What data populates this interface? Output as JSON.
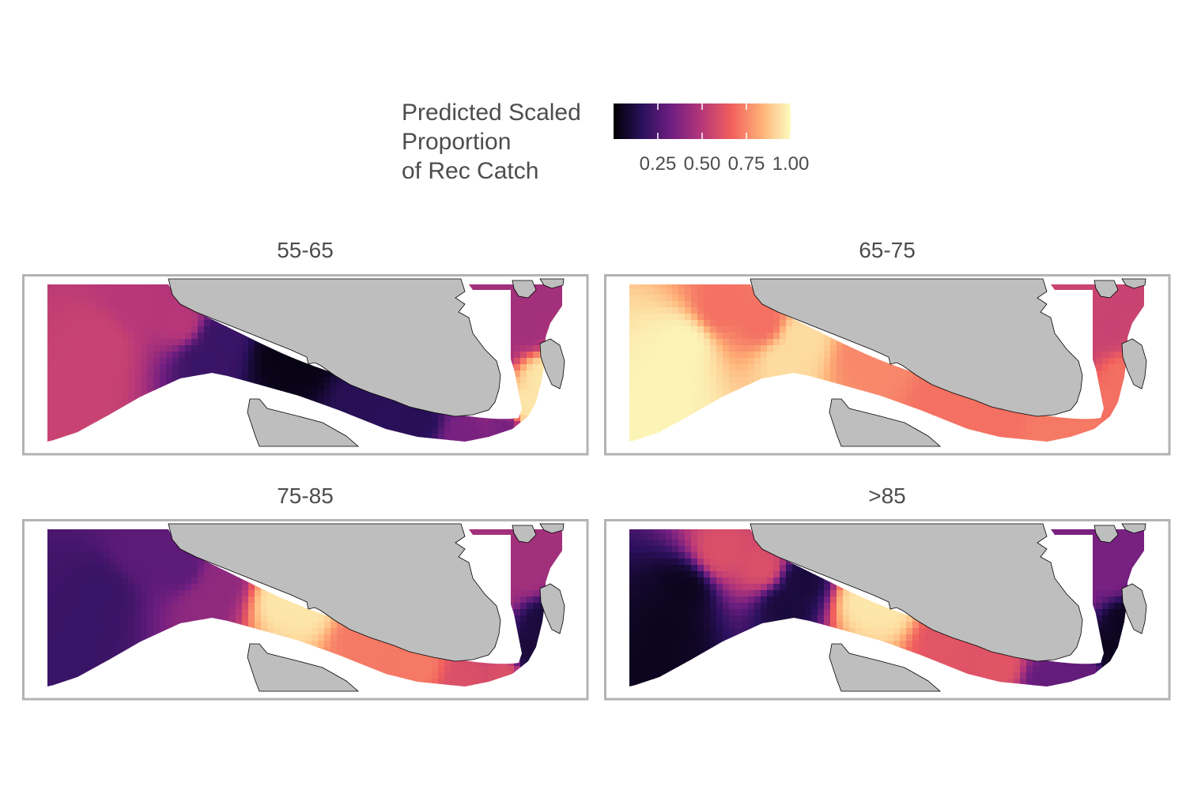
{
  "legend": {
    "title_lines": [
      "Predicted Scaled",
      "Proportion",
      "of Rec Catch"
    ],
    "scale": "magma",
    "stops": [
      "#000004",
      "#2c115f",
      "#721f81",
      "#b73779",
      "#f1605d",
      "#feaf77",
      "#fcfdbf"
    ],
    "ticks": [
      {
        "value": 0.25,
        "label": "0.25"
      },
      {
        "value": 0.5,
        "label": "0.50"
      },
      {
        "value": 0.75,
        "label": "0.75"
      },
      {
        "value": 1.0,
        "label": "1.00"
      }
    ],
    "range": [
      0.0,
      1.0
    ]
  },
  "colors": {
    "land": "#bebebe",
    "panel_border": "#b3b3b3",
    "text": "#4d4d4d"
  },
  "chart_data": {
    "type": "heatmap",
    "facets": [
      {
        "label": "55-65",
        "values": {
          "west": 0.55,
          "northwest": 0.5,
          "mid_strait": 0.2,
          "constriction": 0.03,
          "channel": 0.15,
          "east_mouth": 0.35,
          "inlets": 0.45,
          "south_bend": 0.95
        }
      },
      {
        "label": "65-75",
        "values": {
          "west": 0.98,
          "northwest": 0.7,
          "mid_strait": 0.93,
          "constriction": 0.75,
          "channel": 0.7,
          "east_mouth": 0.72,
          "inlets": 0.55,
          "south_bend": 0.7
        }
      },
      {
        "label": "75-85",
        "values": {
          "west": 0.2,
          "northwest": 0.28,
          "mid_strait": 0.4,
          "constriction": 0.95,
          "channel": 0.72,
          "east_mouth": 0.6,
          "inlets": 0.45,
          "south_bend": 0.1
        }
      },
      {
        "label": ">85",
        "values": {
          "west": 0.05,
          "northwest": 0.6,
          "mid_strait": 0.1,
          "constriction": 0.95,
          "channel": 0.62,
          "east_mouth": 0.3,
          "inlets": 0.35,
          "south_bend": 0.05
        }
      }
    ]
  }
}
